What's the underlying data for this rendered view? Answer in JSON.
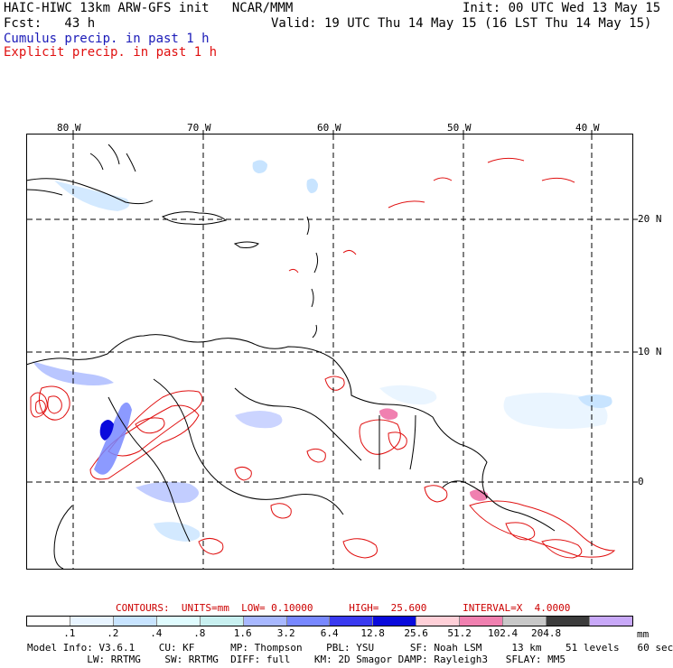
{
  "header": {
    "model_line": "HAIC-HIWC 13km ARW-GFS init   NCAR/MMM",
    "forecast_line": "Fcst:   43 h",
    "init_line": "Init: 00 UTC Wed 13 May 15",
    "valid_line": "Valid: 19 UTC Thu 14 May 15 (16 LST Thu 14 May 15)",
    "cumulus_label": "Cumulus precip. in past 1 h",
    "explicit_label": "Explicit precip. in past 1 h"
  },
  "colors": {
    "cumulus": "#1a1ab8",
    "explicit": "#e01010",
    "contour_line": "#cc0000",
    "grid": "#000000"
  },
  "map": {
    "lon_labels": [
      "80 W",
      "70 W",
      "60 W",
      "50 W",
      "40 W"
    ],
    "lat_labels": [
      "20 N",
      "10 N",
      "0"
    ]
  },
  "contours": {
    "line": "CONTOURS:  UNITS=mm  LOW= 0.10000      HIGH=  25.600      INTERVAL=X  4.0000"
  },
  "colorbar": {
    "colors": [
      "#ffffff",
      "#e8f4ff",
      "#c8e4ff",
      "#e0fcff",
      "#c8f0f0",
      "#a8b8ff",
      "#7888ff",
      "#3a3af0",
      "#0a0adc",
      "#ffd0d8",
      "#f080b0",
      "#c8c8c8",
      "#3c3c3c",
      "#c8a8f8"
    ],
    "labels": [
      ".1",
      ".2",
      ".4",
      ".8",
      "1.6",
      "3.2",
      "6.4",
      "12.8",
      "25.6",
      "51.2",
      "102.4",
      "204.8"
    ],
    "units": "mm"
  },
  "model_info": {
    "line1": "Model Info: V3.6.1    CU: KF      MP: Thompson    PBL: YSU      SF: Noah LSM     13 km    51 levels   60 sec",
    "line2": "          LW: RRTMG    SW: RRTMG  DIFF: full    KM: 2D Smagor DAMP: Rayleigh3   SFLAY: MM5"
  }
}
